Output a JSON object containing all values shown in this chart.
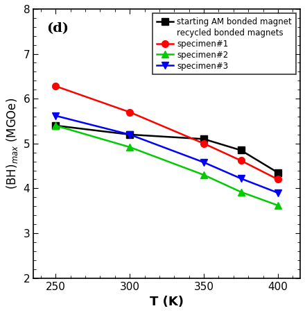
{
  "x": [
    250,
    300,
    350,
    375,
    400
  ],
  "starting_AM": [
    5.4,
    5.2,
    5.1,
    4.85,
    4.35
  ],
  "specimen1": [
    6.28,
    5.7,
    5.0,
    4.62,
    4.2
  ],
  "specimen2": [
    5.4,
    4.92,
    4.3,
    3.92,
    3.62
  ],
  "specimen3": [
    5.62,
    5.2,
    4.58,
    4.22,
    3.9
  ],
  "colors": {
    "starting_AM": "#000000",
    "specimen1": "#ff0000",
    "specimen2": "#00cc00",
    "specimen3": "#0000ff"
  },
  "markers": {
    "starting_AM": "s",
    "specimen1": "o",
    "specimen2": "^",
    "specimen3": "v"
  },
  "legend_line1": "starting AM bonded magnet",
  "legend_line2": "recycled bonded magnets",
  "legend_spec1": "specimen#1",
  "legend_spec2": "specimen#2",
  "legend_spec3": "specimen#3",
  "xlabel": "T (K)",
  "ylabel": "(BH)$_{max}$ (MGOe)",
  "annotation": "(d)",
  "xlim": [
    235,
    415
  ],
  "ylim": [
    2,
    8
  ],
  "xticks": [
    250,
    300,
    350,
    400
  ],
  "yticks": [
    2,
    3,
    4,
    5,
    6,
    7,
    8
  ],
  "figsize": [
    4.4,
    4.51
  ],
  "dpi": 100
}
